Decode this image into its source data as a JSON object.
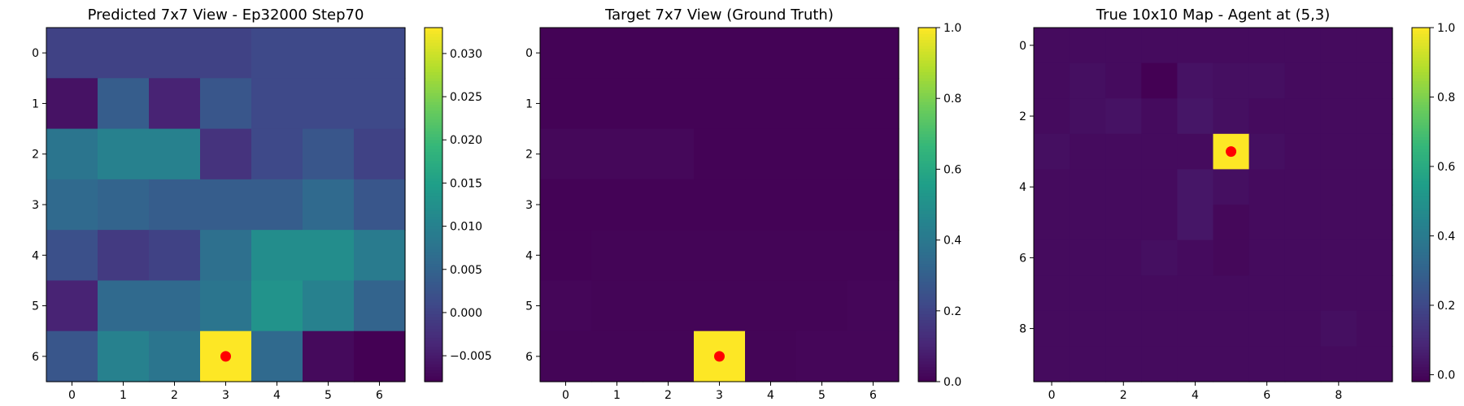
{
  "chart_data": [
    {
      "type": "heatmap",
      "title": "Predicted 7x7 View - Ep32000 Step70",
      "x_ticks": [
        "0",
        "1",
        "2",
        "3",
        "4",
        "5",
        "6"
      ],
      "y_ticks": [
        "0",
        "1",
        "2",
        "3",
        "4",
        "5",
        "6"
      ],
      "colorbar_ticks": [
        "−0.005",
        "0.000",
        "0.005",
        "0.010",
        "0.015",
        "0.020",
        "0.025",
        "0.030"
      ],
      "colorbar_tick_values": [
        -0.005,
        0.0,
        0.005,
        0.01,
        0.015,
        0.02,
        0.025,
        0.03
      ],
      "vmin": -0.008,
      "vmax": 0.033,
      "colormap": "viridis",
      "values": [
        [
          0.0,
          0.0,
          0.0,
          0.0,
          0.001,
          0.001,
          0.001
        ],
        [
          -0.006,
          0.004,
          -0.004,
          0.003,
          0.001,
          0.001,
          0.001
        ],
        [
          0.008,
          0.01,
          0.01,
          -0.002,
          0.001,
          0.003,
          0.0
        ],
        [
          0.006,
          0.005,
          0.004,
          0.004,
          0.004,
          0.006,
          0.003
        ],
        [
          0.002,
          -0.001,
          0.0,
          0.007,
          0.012,
          0.012,
          0.009
        ],
        [
          -0.004,
          0.006,
          0.006,
          0.008,
          0.013,
          0.01,
          0.005
        ],
        [
          0.003,
          0.01,
          0.008,
          0.033,
          0.006,
          -0.007,
          -0.008
        ]
      ],
      "agent_marker": {
        "x": 3,
        "y": 6,
        "color": "#ff0000"
      }
    },
    {
      "type": "heatmap",
      "title": "Target 7x7 View (Ground Truth)",
      "x_ticks": [
        "0",
        "1",
        "2",
        "3",
        "4",
        "5",
        "6"
      ],
      "y_ticks": [
        "0",
        "1",
        "2",
        "3",
        "4",
        "5",
        "6"
      ],
      "colorbar_ticks": [
        "0.0",
        "0.2",
        "0.4",
        "0.6",
        "0.8",
        "1.0"
      ],
      "colorbar_tick_values": [
        0.0,
        0.2,
        0.4,
        0.6,
        0.8,
        1.0
      ],
      "vmin": 0.0,
      "vmax": 1.0,
      "colormap": "viridis",
      "values": [
        [
          0.005,
          0.005,
          0.005,
          0.005,
          0.005,
          0.005,
          0.005
        ],
        [
          0.005,
          0.005,
          0.005,
          0.005,
          0.005,
          0.005,
          0.005
        ],
        [
          0.02,
          0.02,
          0.02,
          0.005,
          0.005,
          0.005,
          0.005
        ],
        [
          0.005,
          0.005,
          0.005,
          0.005,
          0.005,
          0.005,
          0.005
        ],
        [
          0.005,
          0.01,
          0.01,
          0.01,
          0.01,
          0.01,
          0.01
        ],
        [
          0.015,
          0.01,
          0.01,
          0.01,
          0.01,
          0.01,
          0.015
        ],
        [
          0.01,
          0.01,
          0.01,
          1.0,
          0.01,
          0.015,
          0.015
        ]
      ],
      "agent_marker": {
        "x": 3,
        "y": 6,
        "color": "#ff0000"
      }
    },
    {
      "type": "heatmap",
      "title": "True 10x10 Map - Agent at (5,3)",
      "x_ticks": [
        "0",
        "2",
        "4",
        "6",
        "8"
      ],
      "x_tick_values": [
        0,
        2,
        4,
        6,
        8
      ],
      "y_ticks": [
        "0",
        "2",
        "4",
        "6",
        "8"
      ],
      "y_tick_values": [
        0,
        2,
        4,
        6,
        8
      ],
      "colorbar_ticks": [
        "0.0",
        "0.2",
        "0.4",
        "0.6",
        "0.8",
        "1.0"
      ],
      "colorbar_tick_values": [
        0.0,
        0.2,
        0.4,
        0.6,
        0.8,
        1.0
      ],
      "vmin": -0.02,
      "vmax": 1.0,
      "colormap": "viridis",
      "values": [
        [
          0.01,
          0.01,
          0.01,
          0.01,
          0.01,
          0.01,
          0.01,
          0.01,
          0.01,
          0.01
        ],
        [
          0.01,
          0.02,
          0.01,
          -0.02,
          0.03,
          0.02,
          0.02,
          0.01,
          0.01,
          0.01
        ],
        [
          0.01,
          0.02,
          0.03,
          0.01,
          0.04,
          0.02,
          0.01,
          0.01,
          0.01,
          0.01
        ],
        [
          0.02,
          0.01,
          0.01,
          0.01,
          0.01,
          1.0,
          0.02,
          0.01,
          0.01,
          0.01
        ],
        [
          0.01,
          0.01,
          0.01,
          0.01,
          0.04,
          0.02,
          0.01,
          0.01,
          0.01,
          0.01
        ],
        [
          0.01,
          0.01,
          0.01,
          0.01,
          0.04,
          0.0,
          0.01,
          0.01,
          0.01,
          0.01
        ],
        [
          0.01,
          0.01,
          0.01,
          0.02,
          0.01,
          0.0,
          0.01,
          0.01,
          0.01,
          0.01
        ],
        [
          0.01,
          0.01,
          0.01,
          0.01,
          0.01,
          0.01,
          0.01,
          0.01,
          0.01,
          0.01
        ],
        [
          0.01,
          0.01,
          0.01,
          0.01,
          0.01,
          0.01,
          0.01,
          0.01,
          0.02,
          0.01
        ],
        [
          0.01,
          0.01,
          0.01,
          0.01,
          0.01,
          0.01,
          0.01,
          0.01,
          0.01,
          0.01
        ]
      ],
      "agent_marker": {
        "x": 5,
        "y": 3,
        "color": "#ff0000"
      }
    }
  ]
}
